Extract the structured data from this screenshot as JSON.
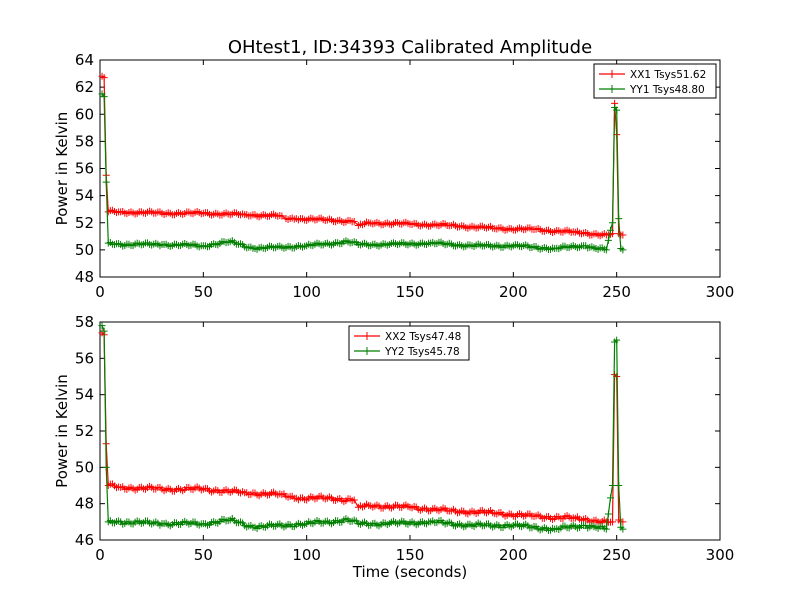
{
  "chart_data": [
    {
      "type": "line",
      "title": "OHtest1, ID:34393 Calibrated Amplitude",
      "xlabel": "",
      "ylabel": "Power in Kelvin",
      "xlim": [
        0,
        300
      ],
      "ylim": [
        48,
        64
      ],
      "xticks": [
        "0",
        "50",
        "100",
        "150",
        "200",
        "250",
        "300"
      ],
      "yticks": [
        "48",
        "50",
        "52",
        "54",
        "56",
        "58",
        "60",
        "62",
        "64"
      ],
      "legend_position": "top-right",
      "grid": false,
      "series": [
        {
          "name": "XX1 Tsys51.62",
          "color": "#ff0000",
          "x": [
            1,
            2,
            3,
            4,
            10,
            30,
            50,
            70,
            88,
            90,
            95,
            110,
            123,
            125,
            130,
            150,
            170,
            190,
            210,
            230,
            245,
            248,
            249,
            250,
            251,
            252,
            253
          ],
          "y": [
            62.8,
            62.7,
            55.5,
            52.8,
            52.8,
            52.7,
            52.7,
            52.6,
            52.5,
            52.3,
            52.3,
            52.2,
            52.1,
            51.8,
            52.0,
            51.9,
            51.8,
            51.6,
            51.5,
            51.3,
            51.1,
            51.2,
            60.8,
            58.5,
            51.2,
            51.1,
            51.1
          ]
        },
        {
          "name": "YY1 Tsys48.80",
          "color": "#007f00",
          "x": [
            1,
            2,
            3,
            4,
            10,
            30,
            50,
            63,
            75,
            100,
            120,
            125,
            140,
            160,
            180,
            200,
            220,
            235,
            240,
            245,
            248,
            249,
            250,
            251,
            252,
            253
          ],
          "y": [
            61.5,
            61.3,
            55.0,
            50.5,
            50.4,
            50.4,
            50.3,
            50.6,
            50.1,
            50.3,
            50.6,
            50.4,
            50.4,
            50.5,
            50.3,
            50.3,
            50.1,
            50.3,
            50.1,
            50.0,
            52.0,
            60.5,
            60.3,
            52.3,
            50.1,
            50.0
          ]
        }
      ]
    },
    {
      "type": "line",
      "title": "",
      "xlabel": "Time (seconds)",
      "ylabel": "Power in Kelvin",
      "xlim": [
        0,
        300
      ],
      "ylim": [
        46,
        58
      ],
      "xticks": [
        "0",
        "50",
        "100",
        "150",
        "200",
        "250",
        "300"
      ],
      "yticks": [
        "46",
        "48",
        "50",
        "52",
        "54",
        "56",
        "58"
      ],
      "legend_position": "top-center",
      "grid": false,
      "series": [
        {
          "name": "XX2 Tsys47.48",
          "color": "#ff0000",
          "x": [
            1,
            2,
            3,
            4,
            10,
            30,
            50,
            70,
            88,
            95,
            110,
            123,
            125,
            130,
            150,
            170,
            190,
            210,
            230,
            245,
            248,
            249,
            250,
            251,
            252,
            253
          ],
          "y": [
            57.4,
            57.3,
            51.3,
            49.0,
            48.9,
            48.8,
            48.8,
            48.6,
            48.5,
            48.3,
            48.3,
            48.2,
            47.8,
            47.9,
            47.8,
            47.6,
            47.5,
            47.3,
            47.2,
            47.0,
            47.0,
            55.1,
            55.0,
            47.1,
            47.0,
            47.0
          ]
        },
        {
          "name": "YY2 Tsys45.78",
          "color": "#007f00",
          "x": [
            1,
            2,
            3,
            4,
            10,
            30,
            50,
            63,
            75,
            100,
            120,
            125,
            140,
            160,
            180,
            200,
            220,
            235,
            240,
            245,
            248,
            249,
            250,
            251,
            252,
            253
          ],
          "y": [
            57.8,
            57.5,
            50.0,
            47.0,
            47.0,
            46.9,
            46.9,
            47.1,
            46.7,
            46.9,
            47.1,
            46.9,
            46.9,
            47.0,
            46.8,
            46.8,
            46.6,
            46.8,
            46.7,
            46.6,
            49.0,
            56.9,
            57.0,
            49.0,
            46.7,
            46.6
          ]
        }
      ]
    }
  ]
}
